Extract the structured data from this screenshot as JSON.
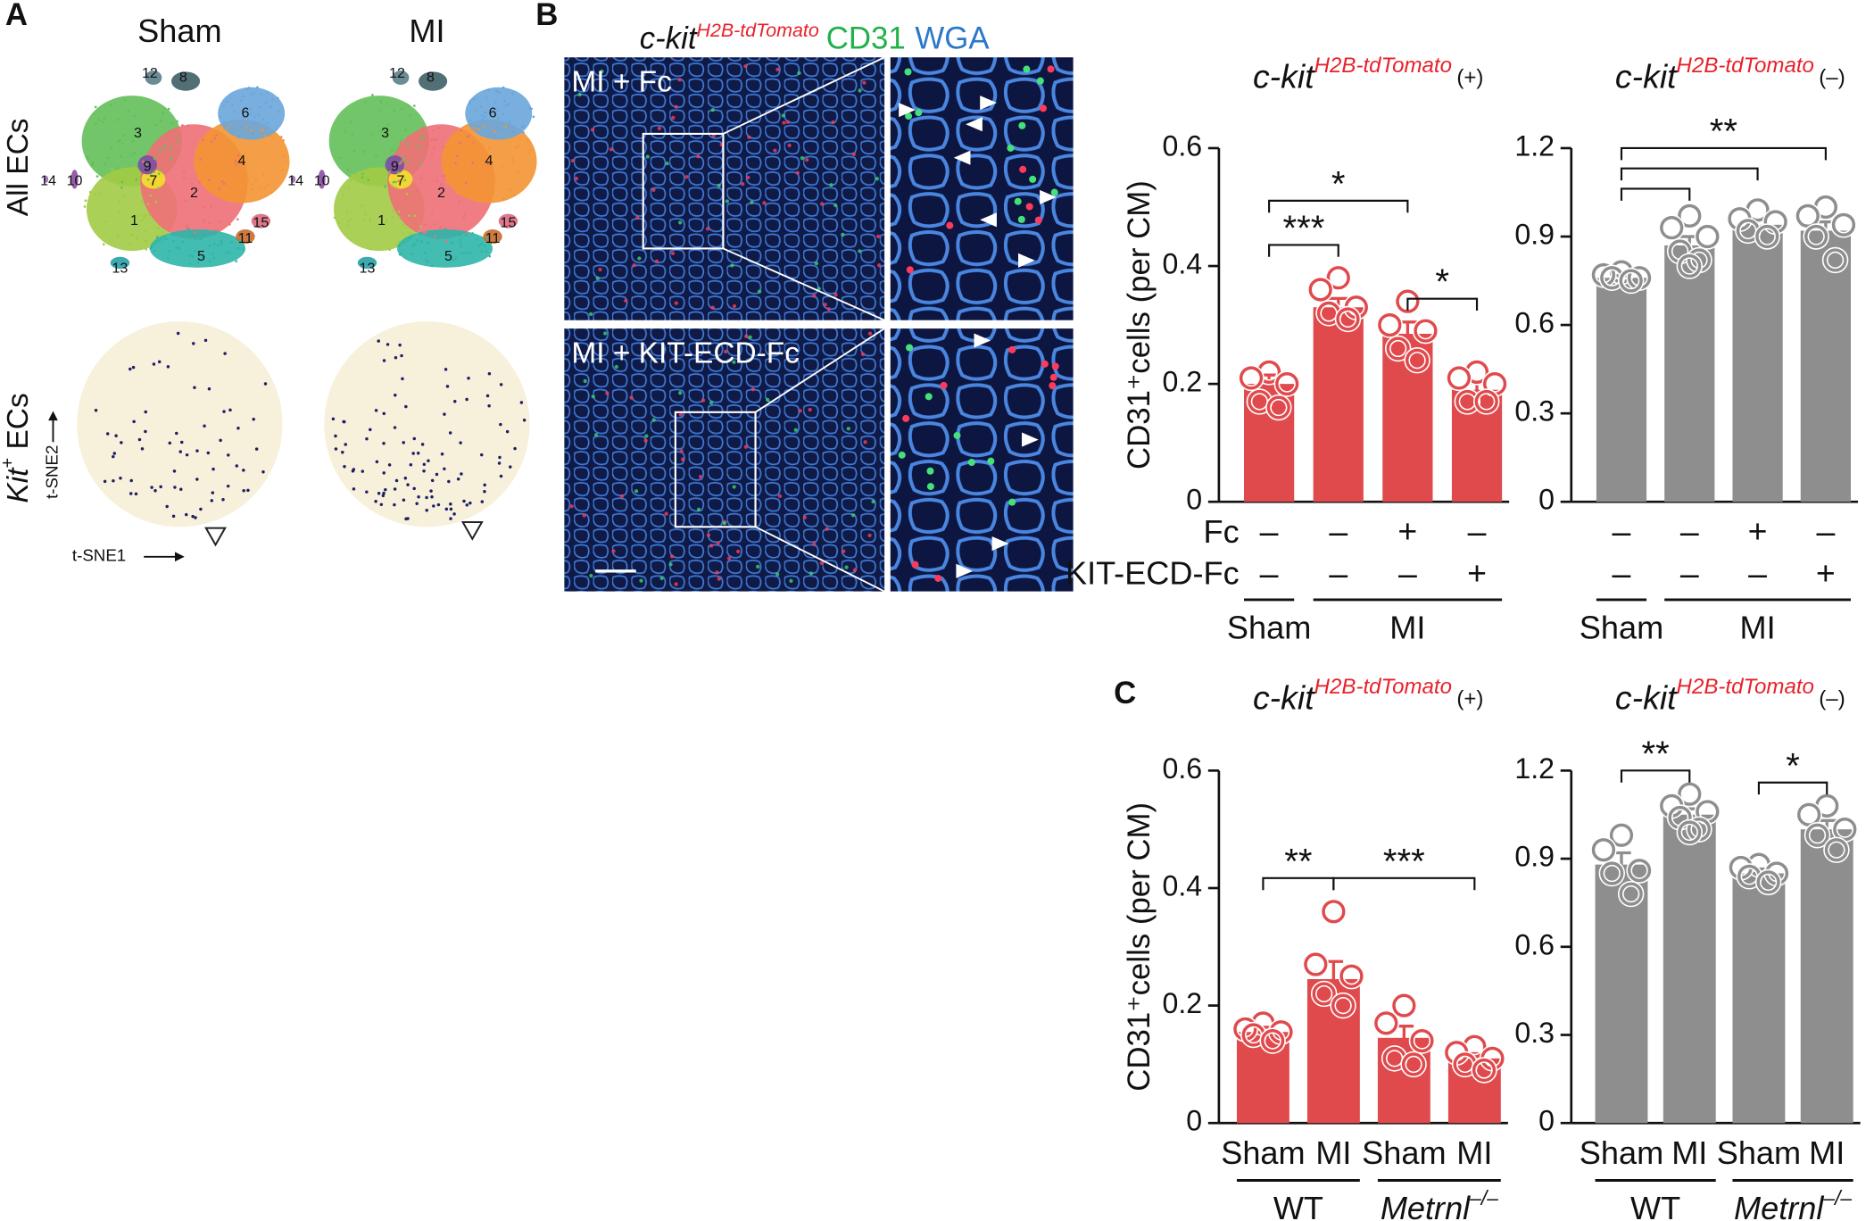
{
  "panel_labels": [
    "A",
    "B",
    "C"
  ],
  "panel_a": {
    "columns": [
      "Sham",
      "MI"
    ],
    "row_top": "All ECs",
    "row_bottom": {
      "gene": "Kit",
      "sup": "+",
      "text": " ECs"
    },
    "x_axis": "t-SNE1",
    "y_axis": "t-SNE2",
    "clusters": [
      "1",
      "2",
      "3",
      "4",
      "5",
      "6",
      "7",
      "8",
      "9",
      "10",
      "11",
      "12",
      "13",
      "14",
      "15"
    ],
    "cluster_colors": [
      "#a2cb45",
      "#ef6f77",
      "#63bf59",
      "#f39533",
      "#2fb5a8",
      "#6aa6db",
      "#f3e02a",
      "#3f5f66",
      "#7b4fa5",
      "#8a4d9e",
      "#c76b2d",
      "#5a7f8a",
      "#29a0a8",
      "#9a6ab0",
      "#d96a7f"
    ]
  },
  "panel_b": {
    "stain": {
      "gene": "c-kit",
      "sup": "H2B-tdTomato",
      "cd31": "CD31",
      "wga": "WGA"
    },
    "images": [
      "MI + Fc",
      "MI + KIT-ECD-Fc"
    ]
  },
  "chart_data": [
    {
      "type": "bar",
      "title": "c-kit",
      "title_sup": "H2B-tdTomato",
      "title_suffix": "(+)",
      "title_sup_color": "#e8212b",
      "ylabel": "CD31⁺cells (per CM)",
      "color": "#e04a4c",
      "ylim": [
        0,
        0.6
      ],
      "yticks": [
        0,
        0.2,
        0.4,
        0.6
      ],
      "values": [
        0.2,
        0.33,
        0.285,
        0.19
      ],
      "errors": [
        0.015,
        0.015,
        0.02,
        0.012
      ],
      "points": [
        [
          0.22,
          0.21,
          0.2,
          0.17,
          0.16
        ],
        [
          0.38,
          0.36,
          0.33,
          0.32,
          0.31
        ],
        [
          0.34,
          0.3,
          0.29,
          0.26,
          0.24
        ],
        [
          0.22,
          0.21,
          0.2,
          0.17,
          0.17
        ]
      ],
      "conditions": [
        {
          "label": "Fc",
          "signs": [
            "–",
            "–",
            "+",
            "–"
          ]
        },
        {
          "label": "KIT-ECD-Fc",
          "signs": [
            "–",
            "–",
            "–",
            "+"
          ]
        }
      ],
      "groups": [
        {
          "label": "Sham",
          "span": [
            0,
            0
          ]
        },
        {
          "label": "MI",
          "span": [
            1,
            3
          ]
        }
      ],
      "annotations": [
        {
          "label": "*",
          "between": [
            0,
            2
          ]
        },
        {
          "label": "***",
          "between": [
            0,
            1
          ]
        },
        {
          "label": "*",
          "between": [
            2,
            3
          ]
        }
      ]
    },
    {
      "type": "bar",
      "title": "c-kit",
      "title_sup": "H2B-tdTomato",
      "title_suffix": "(–)",
      "title_sup_color": "#e8212b",
      "color": "#8e8e8e",
      "ylim": [
        0,
        1.2
      ],
      "yticks": [
        0,
        0.3,
        0.6,
        0.9,
        1.2
      ],
      "values": [
        0.76,
        0.87,
        0.94,
        0.92
      ],
      "errors": [
        0.008,
        0.03,
        0.02,
        0.03
      ],
      "points": [
        [
          0.78,
          0.77,
          0.76,
          0.76,
          0.75
        ],
        [
          0.97,
          0.93,
          0.9,
          0.85,
          0.82,
          0.8
        ],
        [
          0.99,
          0.96,
          0.95,
          0.92,
          0.9
        ],
        [
          1.0,
          0.97,
          0.94,
          0.9,
          0.82
        ]
      ],
      "conditions": [
        {
          "signs": [
            "–",
            "–",
            "+",
            "–"
          ]
        },
        {
          "signs": [
            "–",
            "–",
            "–",
            "+"
          ]
        }
      ],
      "groups": [
        {
          "label": "Sham",
          "span": [
            0,
            0
          ]
        },
        {
          "label": "MI",
          "span": [
            1,
            3
          ]
        }
      ],
      "annotations": [
        {
          "label": "**",
          "between": [
            0,
            1,
            2,
            3
          ]
        }
      ]
    },
    {
      "type": "bar",
      "title": "c-kit",
      "title_sup": "H2B-tdTomato",
      "title_suffix": "(+)",
      "title_sup_color": "#e8212b",
      "ylabel": "CD31⁺cells (per CM)",
      "color": "#e04a4c",
      "ylim": [
        0,
        0.6
      ],
      "yticks": [
        0,
        0.2,
        0.4,
        0.6
      ],
      "categories": [
        "Sham",
        "MI",
        "Sham",
        "MI"
      ],
      "values": [
        0.155,
        0.245,
        0.145,
        0.11
      ],
      "errors": [
        0.008,
        0.03,
        0.02,
        0.008
      ],
      "points": [
        [
          0.17,
          0.16,
          0.155,
          0.15,
          0.14
        ],
        [
          0.36,
          0.27,
          0.25,
          0.22,
          0.2
        ],
        [
          0.2,
          0.17,
          0.14,
          0.11,
          0.1
        ],
        [
          0.13,
          0.12,
          0.11,
          0.1,
          0.09
        ]
      ],
      "groups": [
        {
          "label": "WT",
          "span": [
            0,
            1
          ]
        },
        {
          "label": "Metrnl",
          "sup": "–/–",
          "span": [
            2,
            3
          ]
        }
      ],
      "annotations": [
        {
          "label": "**",
          "between": [
            0,
            1
          ]
        },
        {
          "label": "***",
          "between": [
            1,
            3
          ]
        }
      ]
    },
    {
      "type": "bar",
      "title": "c-kit",
      "title_sup": "H2B-tdTomato",
      "title_suffix": "(–)",
      "title_sup_color": "#e8212b",
      "color": "#8e8e8e",
      "ylim": [
        0,
        1.2
      ],
      "yticks": [
        0,
        0.3,
        0.6,
        0.9,
        1.2
      ],
      "categories": [
        "Sham",
        "MI",
        "Sham",
        "MI"
      ],
      "values": [
        0.88,
        1.05,
        0.85,
        1.0
      ],
      "errors": [
        0.04,
        0.02,
        0.015,
        0.03
      ],
      "points": [
        [
          0.98,
          0.93,
          0.86,
          0.85,
          0.78
        ],
        [
          1.12,
          1.08,
          1.06,
          1.04,
          1.0,
          0.99
        ],
        [
          0.88,
          0.87,
          0.85,
          0.84,
          0.82
        ],
        [
          1.08,
          1.05,
          1.0,
          0.98,
          0.93
        ]
      ],
      "groups": [
        {
          "label": "WT",
          "span": [
            0,
            1
          ]
        },
        {
          "label": "Metrnl",
          "sup": "–/–",
          "span": [
            2,
            3
          ]
        }
      ],
      "annotations": [
        {
          "label": "**",
          "between": [
            0,
            1
          ]
        },
        {
          "label": "*",
          "between": [
            2,
            3
          ]
        }
      ]
    }
  ]
}
